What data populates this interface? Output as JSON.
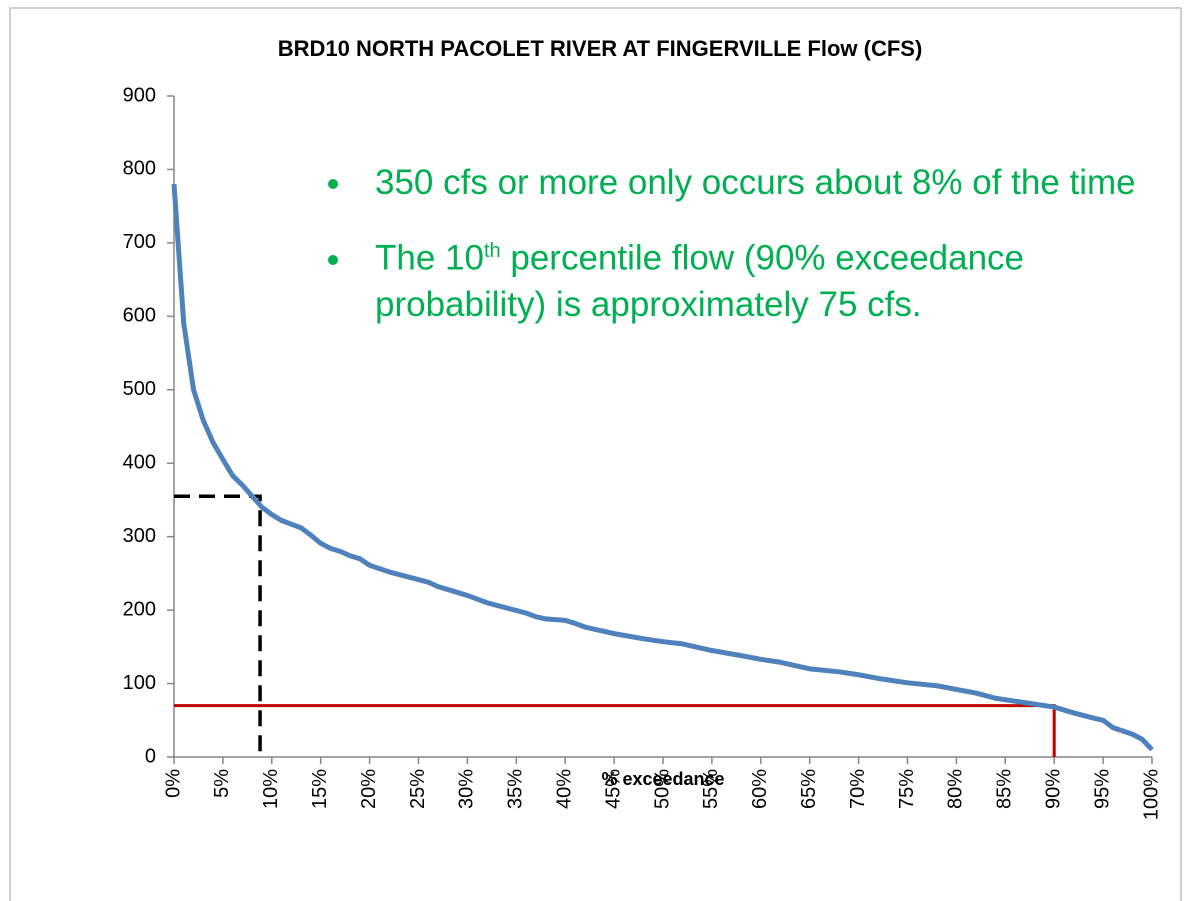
{
  "chart_data": {
    "type": "line",
    "title": "BRD10 NORTH PACOLET RIVER AT FINGERVILLE Flow (CFS)",
    "x_label": "% exceedance",
    "color": "#4f81bd",
    "x": [
      0,
      1,
      2,
      3,
      4,
      5,
      6,
      7,
      8,
      9,
      10,
      11,
      12,
      13,
      14,
      15,
      16,
      17,
      18,
      19,
      20,
      22,
      24,
      26,
      27,
      28,
      30,
      32,
      34,
      36,
      37,
      38,
      40,
      41,
      42,
      45,
      48,
      50,
      52,
      55,
      58,
      60,
      62,
      65,
      68,
      70,
      72,
      75,
      78,
      80,
      82,
      84,
      86,
      88,
      90,
      92,
      94,
      95,
      96,
      98,
      99,
      100
    ],
    "values": [
      780,
      590,
      500,
      458,
      428,
      405,
      383,
      370,
      355,
      340,
      330,
      322,
      317,
      312,
      302,
      291,
      284,
      280,
      274,
      270,
      261,
      252,
      245,
      238,
      232,
      228,
      220,
      210,
      203,
      196,
      191,
      188,
      186,
      182,
      177,
      168,
      161,
      157,
      154,
      145,
      138,
      133,
      129,
      120,
      116,
      112,
      107,
      101,
      97,
      92,
      87,
      80,
      76,
      72,
      68,
      60,
      53,
      50,
      40,
      31,
      24,
      10
    ],
    "xlim": [
      0,
      100
    ],
    "ylim": [
      0,
      900
    ],
    "yticks": [
      0,
      100,
      200,
      300,
      400,
      500,
      600,
      700,
      800,
      900
    ],
    "xticks": [
      {
        "value": 0,
        "label": "0%"
      },
      {
        "value": 5,
        "label": "5%"
      },
      {
        "value": 10,
        "label": "10%"
      },
      {
        "value": 15,
        "label": "15%"
      },
      {
        "value": 20,
        "label": "20%"
      },
      {
        "value": 25,
        "label": "25%"
      },
      {
        "value": 30,
        "label": "30%"
      },
      {
        "value": 35,
        "label": "35%"
      },
      {
        "value": 40,
        "label": "40%"
      },
      {
        "value": 45,
        "label": "45%"
      },
      {
        "value": 50,
        "label": "50%"
      },
      {
        "value": 55,
        "label": "55%"
      },
      {
        "value": 60,
        "label": "60%"
      },
      {
        "value": 65,
        "label": "65%"
      },
      {
        "value": 70,
        "label": "70%"
      },
      {
        "value": 75,
        "label": "75%"
      },
      {
        "value": 80,
        "label": "80%"
      },
      {
        "value": 85,
        "label": "85%"
      },
      {
        "value": 90,
        "label": "90%"
      },
      {
        "value": 95,
        "label": "95%"
      },
      {
        "value": 100,
        "label": "100%"
      }
    ],
    "reference_lines": [
      {
        "x": 8.8,
        "y": 355,
        "color": "#000000",
        "dashed": true
      },
      {
        "x": 90,
        "y": 70,
        "color": "#c00000",
        "dashed": false
      }
    ],
    "annotations": [
      [
        "350 cfs or more only occurs about 8% of the time"
      ],
      [
        "The 10",
        "th",
        " percentile flow (90% exceedance probability) is approximately 75 cfs."
      ]
    ]
  }
}
